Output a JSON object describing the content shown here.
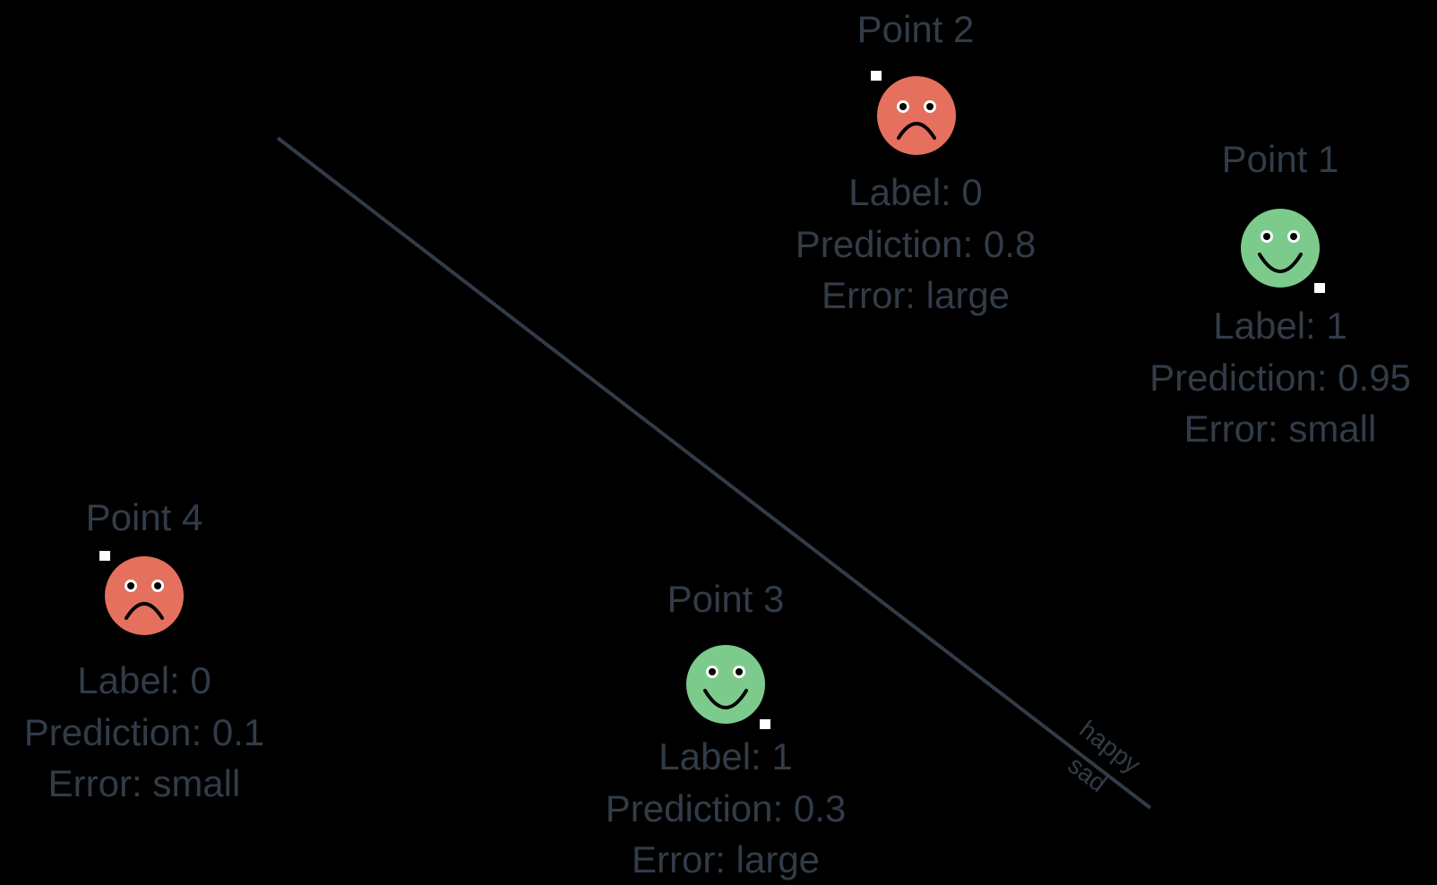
{
  "boundary": {
    "happy_side_label": "happy",
    "sad_side_label": "sad",
    "boundary_color": "#323c48"
  },
  "colors": {
    "happy_face": "#7ccb8c",
    "sad_face": "#e5705e",
    "text": "#323c48",
    "background": "#000000"
  },
  "points": [
    {
      "title": "Point 1",
      "face": "happy-face-icon",
      "label_text": "Label: 1",
      "prediction_text": "Prediction: 0.95",
      "error_text": "Error: small"
    },
    {
      "title": "Point 2",
      "face": "sad-face-icon",
      "label_text": "Label: 0",
      "prediction_text": "Prediction: 0.8",
      "error_text": "Error: large"
    },
    {
      "title": "Point 3",
      "face": "happy-face-icon",
      "label_text": "Label: 1",
      "prediction_text": "Prediction: 0.3",
      "error_text": "Error: large"
    },
    {
      "title": "Point 4",
      "face": "sad-face-icon",
      "label_text": "Label: 0",
      "prediction_text": "Prediction: 0.1",
      "error_text": "Error: small"
    }
  ]
}
